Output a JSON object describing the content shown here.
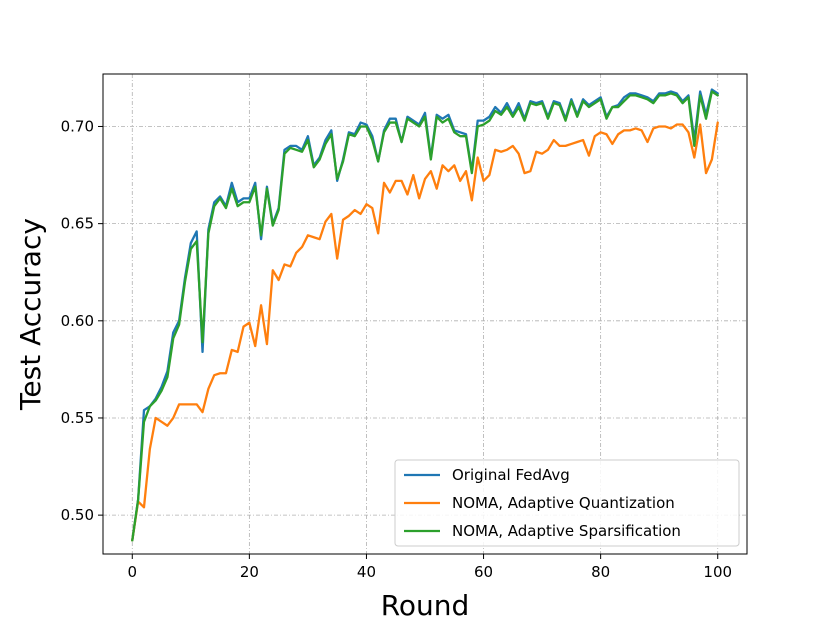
{
  "chart_data": {
    "type": "line",
    "xlabel": "Round",
    "ylabel": "Test Accuracy",
    "xlim": [
      -5,
      105
    ],
    "ylim": [
      0.48,
      0.727
    ],
    "xticks": [
      0,
      20,
      40,
      60,
      80,
      100
    ],
    "yticks": [
      0.5,
      0.55,
      0.6,
      0.65,
      0.7
    ],
    "grid": true,
    "legend_position": "lower-right",
    "series": [
      {
        "name": "Original FedAvg",
        "color": "#1f77b4",
        "x": [
          0,
          1,
          2,
          3,
          4,
          5,
          6,
          7,
          8,
          9,
          10,
          11,
          12,
          13,
          14,
          15,
          16,
          17,
          18,
          19,
          20,
          21,
          22,
          23,
          24,
          25,
          26,
          27,
          28,
          29,
          30,
          31,
          32,
          33,
          34,
          35,
          36,
          37,
          38,
          39,
          40,
          41,
          42,
          43,
          44,
          45,
          46,
          47,
          48,
          49,
          50,
          51,
          52,
          53,
          54,
          55,
          56,
          57,
          58,
          59,
          60,
          61,
          62,
          63,
          64,
          65,
          66,
          67,
          68,
          69,
          70,
          71,
          72,
          73,
          74,
          75,
          76,
          77,
          78,
          79,
          80,
          81,
          82,
          83,
          84,
          85,
          86,
          87,
          88,
          89,
          90,
          91,
          92,
          93,
          94,
          95,
          96,
          97,
          98,
          99,
          100
        ],
        "y": [
          0.487,
          0.508,
          0.554,
          0.556,
          0.56,
          0.566,
          0.574,
          0.594,
          0.6,
          0.622,
          0.64,
          0.646,
          0.584,
          0.647,
          0.661,
          0.664,
          0.659,
          0.671,
          0.661,
          0.663,
          0.663,
          0.671,
          0.642,
          0.669,
          0.65,
          0.658,
          0.688,
          0.69,
          0.69,
          0.688,
          0.695,
          0.68,
          0.684,
          0.693,
          0.698,
          0.672,
          0.683,
          0.697,
          0.696,
          0.702,
          0.701,
          0.695,
          0.682,
          0.698,
          0.704,
          0.704,
          0.692,
          0.705,
          0.703,
          0.701,
          0.707,
          0.684,
          0.706,
          0.704,
          0.706,
          0.698,
          0.697,
          0.696,
          0.677,
          0.703,
          0.703,
          0.705,
          0.71,
          0.707,
          0.712,
          0.706,
          0.712,
          0.704,
          0.713,
          0.712,
          0.713,
          0.705,
          0.713,
          0.712,
          0.704,
          0.714,
          0.706,
          0.714,
          0.711,
          0.713,
          0.715,
          0.705,
          0.71,
          0.711,
          0.715,
          0.717,
          0.717,
          0.716,
          0.715,
          0.713,
          0.717,
          0.717,
          0.718,
          0.717,
          0.713,
          0.716,
          0.693,
          0.718,
          0.706,
          0.719,
          0.717
        ]
      },
      {
        "name": "NOMA, Adaptive Quantization",
        "color": "#ff7f0e",
        "x": [
          0,
          1,
          2,
          3,
          4,
          5,
          6,
          7,
          8,
          9,
          10,
          11,
          12,
          13,
          14,
          15,
          16,
          17,
          18,
          19,
          20,
          21,
          22,
          23,
          24,
          25,
          26,
          27,
          28,
          29,
          30,
          31,
          32,
          33,
          34,
          35,
          36,
          37,
          38,
          39,
          40,
          41,
          42,
          43,
          44,
          45,
          46,
          47,
          48,
          49,
          50,
          51,
          52,
          53,
          54,
          55,
          56,
          57,
          58,
          59,
          60,
          61,
          62,
          63,
          64,
          65,
          66,
          67,
          68,
          69,
          70,
          71,
          72,
          73,
          74,
          75,
          76,
          77,
          78,
          79,
          80,
          81,
          82,
          83,
          84,
          85,
          86,
          87,
          88,
          89,
          90,
          91,
          92,
          93,
          94,
          95,
          96,
          97,
          98,
          99,
          100
        ],
        "y": [
          0.487,
          0.507,
          0.504,
          0.534,
          0.55,
          0.548,
          0.546,
          0.55,
          0.557,
          0.557,
          0.557,
          0.557,
          0.553,
          0.565,
          0.572,
          0.573,
          0.573,
          0.585,
          0.584,
          0.597,
          0.599,
          0.587,
          0.608,
          0.588,
          0.626,
          0.621,
          0.629,
          0.628,
          0.635,
          0.638,
          0.644,
          0.643,
          0.642,
          0.651,
          0.655,
          0.632,
          0.652,
          0.654,
          0.657,
          0.655,
          0.66,
          0.658,
          0.645,
          0.671,
          0.666,
          0.672,
          0.672,
          0.665,
          0.675,
          0.663,
          0.673,
          0.677,
          0.668,
          0.68,
          0.677,
          0.68,
          0.672,
          0.677,
          0.662,
          0.684,
          0.672,
          0.675,
          0.688,
          0.687,
          0.688,
          0.69,
          0.686,
          0.676,
          0.677,
          0.687,
          0.686,
          0.688,
          0.693,
          0.69,
          0.69,
          0.691,
          0.692,
          0.693,
          0.685,
          0.695,
          0.697,
          0.696,
          0.691,
          0.696,
          0.698,
          0.698,
          0.699,
          0.698,
          0.692,
          0.699,
          0.7,
          0.7,
          0.699,
          0.701,
          0.701,
          0.697,
          0.684,
          0.701,
          0.676,
          0.683,
          0.702
        ]
      },
      {
        "name": "NOMA, Adaptive Sparsification",
        "color": "#2ca02c",
        "x": [
          0,
          1,
          2,
          3,
          4,
          5,
          6,
          7,
          8,
          9,
          10,
          11,
          12,
          13,
          14,
          15,
          16,
          17,
          18,
          19,
          20,
          21,
          22,
          23,
          24,
          25,
          26,
          27,
          28,
          29,
          30,
          31,
          32,
          33,
          34,
          35,
          36,
          37,
          38,
          39,
          40,
          41,
          42,
          43,
          44,
          45,
          46,
          47,
          48,
          49,
          50,
          51,
          52,
          53,
          54,
          55,
          56,
          57,
          58,
          59,
          60,
          61,
          62,
          63,
          64,
          65,
          66,
          67,
          68,
          69,
          70,
          71,
          72,
          73,
          74,
          75,
          76,
          77,
          78,
          79,
          80,
          81,
          82,
          83,
          84,
          85,
          86,
          87,
          88,
          89,
          90,
          91,
          92,
          93,
          94,
          95,
          96,
          97,
          98,
          99,
          100
        ],
        "y": [
          0.487,
          0.508,
          0.548,
          0.556,
          0.559,
          0.564,
          0.571,
          0.591,
          0.598,
          0.62,
          0.637,
          0.641,
          0.589,
          0.645,
          0.659,
          0.663,
          0.658,
          0.668,
          0.659,
          0.661,
          0.661,
          0.669,
          0.644,
          0.668,
          0.649,
          0.657,
          0.686,
          0.689,
          0.688,
          0.687,
          0.693,
          0.679,
          0.683,
          0.691,
          0.696,
          0.673,
          0.682,
          0.696,
          0.695,
          0.7,
          0.7,
          0.693,
          0.682,
          0.697,
          0.702,
          0.702,
          0.692,
          0.704,
          0.702,
          0.7,
          0.705,
          0.683,
          0.705,
          0.702,
          0.704,
          0.697,
          0.695,
          0.695,
          0.676,
          0.7,
          0.701,
          0.703,
          0.708,
          0.706,
          0.71,
          0.705,
          0.71,
          0.703,
          0.712,
          0.711,
          0.712,
          0.704,
          0.712,
          0.711,
          0.703,
          0.713,
          0.705,
          0.713,
          0.71,
          0.712,
          0.714,
          0.704,
          0.71,
          0.71,
          0.713,
          0.716,
          0.716,
          0.715,
          0.714,
          0.712,
          0.716,
          0.716,
          0.717,
          0.716,
          0.712,
          0.715,
          0.69,
          0.716,
          0.704,
          0.718,
          0.716
        ]
      }
    ]
  }
}
